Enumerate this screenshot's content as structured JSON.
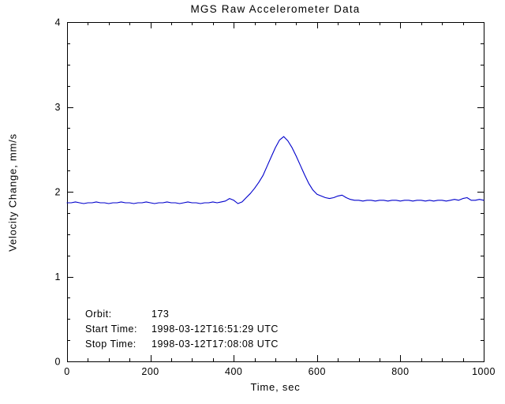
{
  "title": "MGS Raw Accelerometer Data",
  "chart_data": {
    "type": "line",
    "title": "MGS Raw Accelerometer Data",
    "xlabel": "Time, sec",
    "ylabel": "Velocity Change, mm/s",
    "xlim": [
      0,
      1000
    ],
    "ylim": [
      0,
      4
    ],
    "xticks": [
      0,
      200,
      400,
      600,
      800,
      1000
    ],
    "yticks": [
      0,
      1,
      2,
      3,
      4
    ],
    "x_minor_step": 50,
    "y_minor_step": 0.25,
    "grid": false,
    "legend": "none",
    "line_color": "#0000CC",
    "axis_color": "#000000",
    "series": [
      {
        "name": "velocity_change",
        "x": [
          0,
          10,
          20,
          30,
          40,
          50,
          60,
          70,
          80,
          90,
          100,
          110,
          120,
          130,
          140,
          150,
          160,
          170,
          180,
          190,
          200,
          210,
          220,
          230,
          240,
          250,
          260,
          270,
          280,
          290,
          300,
          310,
          320,
          330,
          340,
          350,
          360,
          370,
          380,
          390,
          400,
          410,
          420,
          430,
          440,
          450,
          460,
          470,
          480,
          490,
          500,
          510,
          520,
          530,
          540,
          550,
          560,
          570,
          580,
          590,
          600,
          610,
          620,
          630,
          640,
          650,
          660,
          670,
          680,
          690,
          700,
          710,
          720,
          730,
          740,
          750,
          760,
          770,
          780,
          790,
          800,
          810,
          820,
          830,
          840,
          850,
          860,
          870,
          880,
          890,
          900,
          910,
          920,
          930,
          940,
          950,
          960,
          970,
          980,
          990,
          1000
        ],
        "y": [
          1.87,
          1.87,
          1.88,
          1.87,
          1.86,
          1.87,
          1.87,
          1.88,
          1.87,
          1.87,
          1.86,
          1.87,
          1.87,
          1.88,
          1.87,
          1.87,
          1.86,
          1.87,
          1.87,
          1.88,
          1.87,
          1.86,
          1.87,
          1.87,
          1.88,
          1.87,
          1.87,
          1.86,
          1.87,
          1.88,
          1.87,
          1.87,
          1.86,
          1.87,
          1.87,
          1.88,
          1.87,
          1.88,
          1.89,
          1.92,
          1.9,
          1.86,
          1.88,
          1.93,
          1.98,
          2.04,
          2.11,
          2.19,
          2.3,
          2.41,
          2.52,
          2.61,
          2.65,
          2.6,
          2.52,
          2.42,
          2.31,
          2.2,
          2.1,
          2.02,
          1.97,
          1.95,
          1.93,
          1.92,
          1.93,
          1.95,
          1.96,
          1.93,
          1.91,
          1.9,
          1.9,
          1.89,
          1.9,
          1.9,
          1.89,
          1.9,
          1.9,
          1.89,
          1.9,
          1.9,
          1.89,
          1.9,
          1.9,
          1.89,
          1.9,
          1.9,
          1.89,
          1.9,
          1.89,
          1.9,
          1.9,
          1.89,
          1.9,
          1.91,
          1.9,
          1.92,
          1.93,
          1.9,
          1.9,
          1.91,
          1.9
        ]
      }
    ]
  },
  "annotations": {
    "rows": [
      {
        "label": "Orbit:",
        "value": "173"
      },
      {
        "label": "Start Time:",
        "value": "1998-03-12T16:51:29 UTC"
      },
      {
        "label": "Stop Time:",
        "value": "1998-03-12T17:08:08 UTC"
      }
    ]
  }
}
